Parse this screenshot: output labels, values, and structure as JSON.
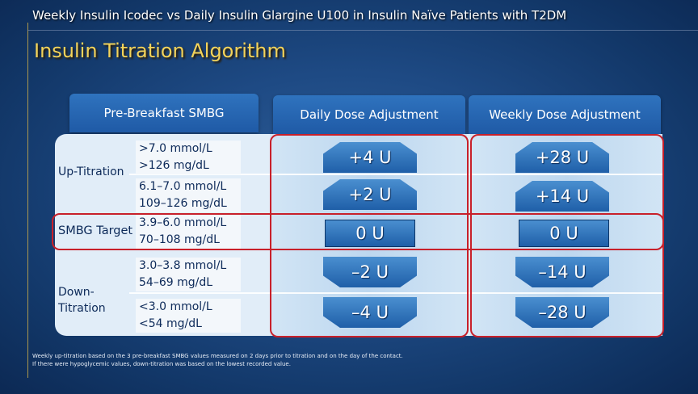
{
  "top_title": "Weekly Insulin Icodec vs Daily Insulin Glargine U100 in Insulin Naïve Patients with T2DM",
  "main_title": "Insulin Titration Algorithm",
  "headers": {
    "smbg": "Pre-Breakfast SMBG",
    "daily": "Daily Dose Adjustment",
    "weekly": "Weekly Dose Adjustment"
  },
  "groups": {
    "up": "Up-Titration",
    "target": "SMBG Target",
    "down_line1": "Down-",
    "down_line2": "Titration"
  },
  "rows": [
    {
      "smbg1": ">7.0 mmol/L",
      "smbg2": ">126 mg/dL",
      "daily": "+4 U",
      "weekly": "+28 U"
    },
    {
      "smbg1": "6.1–7.0 mmol/L",
      "smbg2": "109–126 mg/dL",
      "daily": "+2 U",
      "weekly": "+14 U"
    },
    {
      "smbg1": "3.9–6.0 mmol/L",
      "smbg2": "70–108 mg/dL",
      "daily": "0 U",
      "weekly": "0 U"
    },
    {
      "smbg1": "3.0–3.8 mmol/L",
      "smbg2": "54–69 mg/dL",
      "daily": "–2 U",
      "weekly": "–14 U"
    },
    {
      "smbg1": "<3.0 mmol/L",
      "smbg2": "<54 mg/dL",
      "daily": "–4 U",
      "weekly": "–28 U"
    }
  ],
  "footnote": {
    "line1": "Weekly up-titration based on the 3 pre-breakfast SMBG values measured on 2 days prior to titration and on the day of the contact.",
    "line2": "If there were hypoglycemic values, down-titration was based on the lowest recorded value."
  },
  "colors": {
    "accent_red": "#c8202a",
    "title_gold": "#f3d35a",
    "header_blue": "#2f73be"
  }
}
